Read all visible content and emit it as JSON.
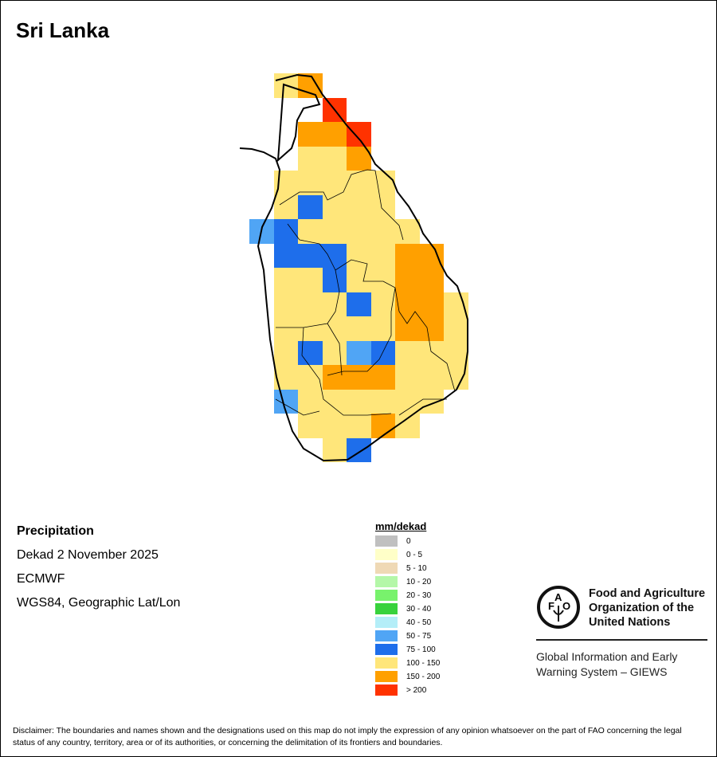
{
  "title": "Sri Lanka",
  "info": {
    "variable": "Precipitation",
    "period": "Dekad 2 November 2025",
    "source": "ECMWF",
    "projection": "WGS84, Geographic Lat/Lon"
  },
  "legend": {
    "title": "mm/dekad",
    "items": [
      {
        "label": "0",
        "color": "#c0c0c0"
      },
      {
        "label": "0 - 5",
        "color": "#ffffc8"
      },
      {
        "label": "5 - 10",
        "color": "#efd9b5"
      },
      {
        "label": "10 - 20",
        "color": "#b4f7a8"
      },
      {
        "label": "20 - 30",
        "color": "#78f26c"
      },
      {
        "label": "30 - 40",
        "color": "#38d23c"
      },
      {
        "label": "40 - 50",
        "color": "#b4eef8"
      },
      {
        "label": "50 - 75",
        "color": "#50a5f5"
      },
      {
        "label": "75 - 100",
        "color": "#1e6eeb"
      },
      {
        "label": "100 - 150",
        "color": "#ffe67a"
      },
      {
        "label": "150 - 200",
        "color": "#ffa000"
      },
      {
        "label": "> 200",
        "color": "#ff3200"
      }
    ]
  },
  "grid_classes": [
    "-YO-------",
    "---R------",
    "--OOR-----",
    "--YYO-----",
    "-YYYYY----",
    "-YBYYY----",
    "LBYYYYY---",
    "-BBBYYOO--",
    "-YYBYYOO--",
    "-YYYBYOOY-",
    "-YYYYYOOY-",
    "-YBYLBYYY-",
    "-YYOOOYYY-",
    "-LYYYYYY--",
    "--YYYOY---",
    "---YB-----"
  ],
  "grid_class_colors": {
    "Y": "#ffe67a",
    "O": "#ffa000",
    "R": "#ff3200",
    "B": "#1e6eeb",
    "L": "#50a5f5"
  },
  "org": {
    "name_line1": "Food and Agriculture",
    "name_line2": "Organization of the",
    "name_line3": "United Nations",
    "logo_text": "FAO FIAT PANIS",
    "giews_line1": "Global Information and Early",
    "giews_line2": "Warning System – GIEWS"
  },
  "disclaimer": "Disclaimer: The boundaries and names shown and the designations used on this map do not imply the expression of any opinion whatsoever on the part of FAO concerning the legal status of any country, territory, area or of its authorities, or concerning the delimitation of its frontiers and boundaries."
}
